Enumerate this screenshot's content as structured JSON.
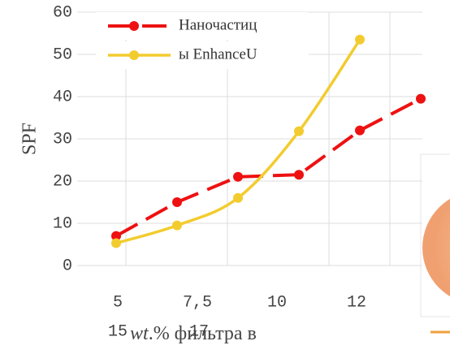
{
  "chart_data": {
    "type": "line",
    "ylabel": "SPF",
    "xlabel_italic": "wt",
    "xlabel": ".% фильтра в",
    "categories": [
      "5",
      "7,5",
      "10",
      "12",
      "15",
      "17"
    ],
    "series": [
      {
        "name": "Наночастиц",
        "color": "#ee1111",
        "dashed": true,
        "values": [
          7,
          15,
          21,
          21.5,
          32,
          39.5
        ]
      },
      {
        "name": "ы EnhanceU",
        "color": "#f2cc2f",
        "dashed": false,
        "values": [
          5.3,
          9.5,
          16,
          31.8,
          53.5,
          null
        ]
      }
    ],
    "ylim": [
      0,
      60
    ],
    "yticks": [
      0,
      10,
      20,
      30,
      40,
      50,
      60
    ],
    "grid": true
  }
}
